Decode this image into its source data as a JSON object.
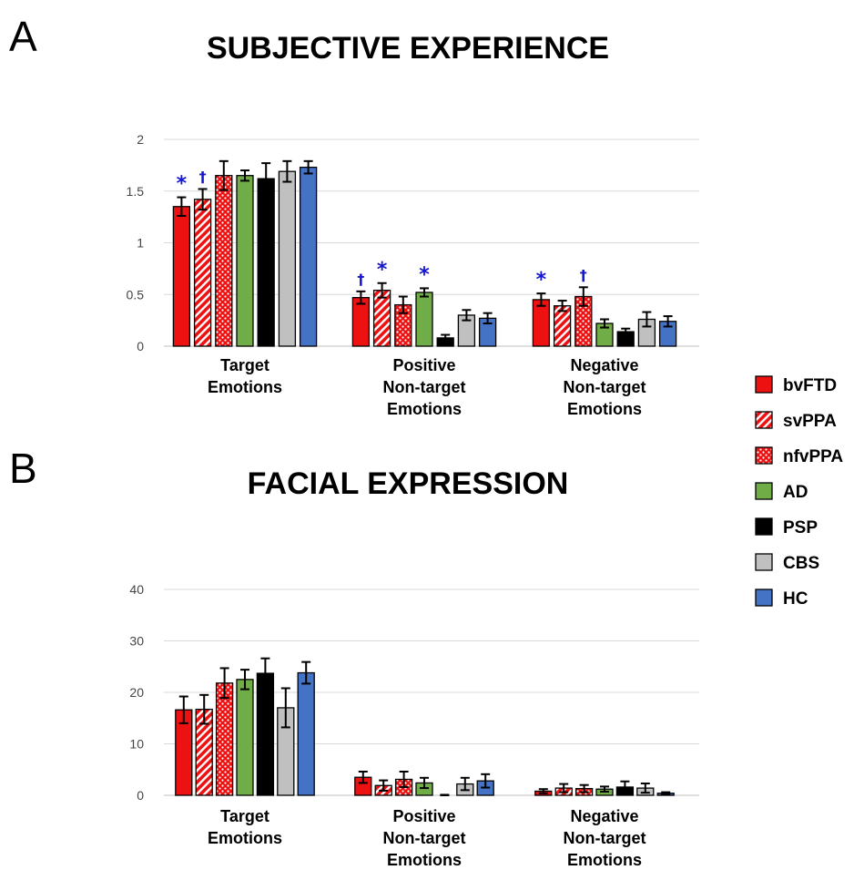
{
  "chart_data": [
    {
      "panel": "A",
      "type": "bar",
      "title": "SUBJECTIVE EXPERIENCE",
      "categories": [
        [
          "Target",
          "Emotions"
        ],
        [
          "Positive",
          "Non-target",
          "Emotions"
        ],
        [
          "Negative",
          "Non-target",
          "Emotions"
        ]
      ],
      "ylim": [
        0,
        2
      ],
      "yticks": [
        "0",
        "0.5",
        "1",
        "1.5",
        "2"
      ],
      "grid": true,
      "series": [
        {
          "name": "bvFTD",
          "values": [
            1.35,
            0.47,
            0.45
          ],
          "errors": [
            0.09,
            0.06,
            0.06
          ],
          "marks": [
            "*",
            "†",
            "*"
          ]
        },
        {
          "name": "svPPA",
          "values": [
            1.42,
            0.54,
            0.39
          ],
          "errors": [
            0.1,
            0.07,
            0.05
          ],
          "marks": [
            "†",
            "*",
            ""
          ]
        },
        {
          "name": "nfvPPA",
          "values": [
            1.65,
            0.4,
            0.48
          ],
          "errors": [
            0.14,
            0.08,
            0.09
          ],
          "marks": [
            "",
            "",
            "†"
          ]
        },
        {
          "name": "AD",
          "values": [
            1.65,
            0.52,
            0.22
          ],
          "errors": [
            0.05,
            0.04,
            0.04
          ],
          "marks": [
            "",
            "*",
            ""
          ]
        },
        {
          "name": "PSP",
          "values": [
            1.62,
            0.08,
            0.14
          ],
          "errors": [
            0.15,
            0.03,
            0.03
          ],
          "marks": [
            "",
            "",
            ""
          ]
        },
        {
          "name": "CBS",
          "values": [
            1.69,
            0.3,
            0.26
          ],
          "errors": [
            0.1,
            0.05,
            0.07
          ],
          "marks": [
            "",
            "",
            ""
          ]
        },
        {
          "name": "HC",
          "values": [
            1.73,
            0.27,
            0.24
          ],
          "errors": [
            0.06,
            0.05,
            0.05
          ],
          "marks": [
            "",
            "",
            ""
          ]
        }
      ]
    },
    {
      "panel": "B",
      "type": "bar",
      "title": "FACIAL EXPRESSION",
      "categories": [
        [
          "Target",
          "Emotions"
        ],
        [
          "Positive",
          "Non-target",
          "Emotions"
        ],
        [
          "Negative",
          "Non-target",
          "Emotions"
        ]
      ],
      "ylim": [
        0,
        40
      ],
      "yticks": [
        "0",
        "10",
        "20",
        "30",
        "40"
      ],
      "grid": true,
      "series": [
        {
          "name": "bvFTD",
          "values": [
            16.6,
            3.5,
            0.8
          ],
          "errors": [
            2.6,
            1.1,
            0.4
          ],
          "marks": [
            "",
            "",
            ""
          ]
        },
        {
          "name": "svPPA",
          "values": [
            16.7,
            1.9,
            1.4
          ],
          "errors": [
            2.8,
            1.0,
            0.8
          ],
          "marks": [
            "",
            "",
            ""
          ]
        },
        {
          "name": "nfvPPA",
          "values": [
            21.8,
            3.1,
            1.3
          ],
          "errors": [
            2.9,
            1.5,
            0.7
          ],
          "marks": [
            "",
            "",
            ""
          ]
        },
        {
          "name": "AD",
          "values": [
            22.5,
            2.4,
            1.2
          ],
          "errors": [
            1.9,
            1.0,
            0.5
          ],
          "marks": [
            "",
            "",
            ""
          ]
        },
        {
          "name": "PSP",
          "values": [
            23.7,
            0.0,
            1.6
          ],
          "errors": [
            2.9,
            0.1,
            1.1
          ],
          "marks": [
            "",
            "",
            ""
          ]
        },
        {
          "name": "CBS",
          "values": [
            17.0,
            2.2,
            1.4
          ],
          "errors": [
            3.8,
            1.2,
            0.9
          ],
          "marks": [
            "",
            "",
            ""
          ]
        },
        {
          "name": "HC",
          "values": [
            23.8,
            2.8,
            0.4
          ],
          "errors": [
            2.1,
            1.3,
            0.2
          ],
          "marks": [
            "",
            "",
            ""
          ]
        }
      ]
    }
  ],
  "legend": [
    {
      "name": "bvFTD",
      "color": "#ee1111",
      "pattern": "solid"
    },
    {
      "name": "svPPA",
      "color": "#ee1111",
      "pattern": "diagonal-stripes"
    },
    {
      "name": "nfvPPA",
      "color": "#ee1111",
      "pattern": "dots"
    },
    {
      "name": "AD",
      "color": "#70ad47",
      "pattern": "solid"
    },
    {
      "name": "PSP",
      "color": "#000000",
      "pattern": "solid"
    },
    {
      "name": "CBS",
      "color": "#c0c0c0",
      "pattern": "solid"
    },
    {
      "name": "HC",
      "color": "#4472c4",
      "pattern": "solid"
    }
  ],
  "colors": {
    "significance": "#1515d6",
    "grid": "#d9d9d9"
  }
}
